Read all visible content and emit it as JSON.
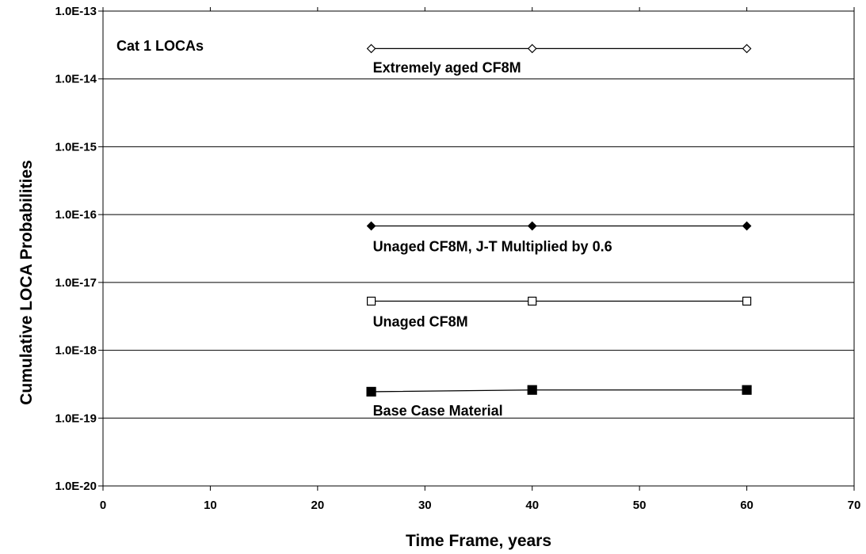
{
  "chart_data": {
    "type": "line",
    "title": "",
    "xlabel": "Time Frame, years",
    "ylabel": "Cumulative LOCA Probabilities",
    "xlim": [
      0,
      70
    ],
    "ylim": [
      1e-20,
      1e-13
    ],
    "yscale": "log",
    "grid": "horizontal",
    "x_ticks": [
      "0",
      "10",
      "20",
      "30",
      "40",
      "50",
      "60",
      "70"
    ],
    "y_ticks": [
      "1.0E-20",
      "1.0E-19",
      "1.0E-18",
      "1.0E-17",
      "1.0E-16",
      "1.0E-15",
      "1.0E-14",
      "1.0E-13"
    ],
    "annotations": [
      "Cat 1 LOCAs"
    ],
    "series": [
      {
        "name": "Extremely aged CF8M",
        "marker": "open-diamond",
        "x": [
          25,
          40,
          60
        ],
        "y": [
          2.8e-14,
          2.8e-14,
          2.8e-14
        ]
      },
      {
        "name": "Unaged CF8M, J-T Multiplied by 0.6",
        "marker": "filled-diamond",
        "x": [
          25,
          40,
          60
        ],
        "y": [
          6.8e-17,
          6.8e-17,
          6.8e-17
        ]
      },
      {
        "name": "Unaged CF8M",
        "marker": "open-square",
        "x": [
          25,
          40,
          60
        ],
        "y": [
          5.3e-18,
          5.3e-18,
          5.3e-18
        ]
      },
      {
        "name": "Base Case Material",
        "marker": "filled-square",
        "x": [
          25,
          40,
          60
        ],
        "y": [
          2.45e-19,
          2.6e-19,
          2.6e-19
        ]
      }
    ]
  }
}
